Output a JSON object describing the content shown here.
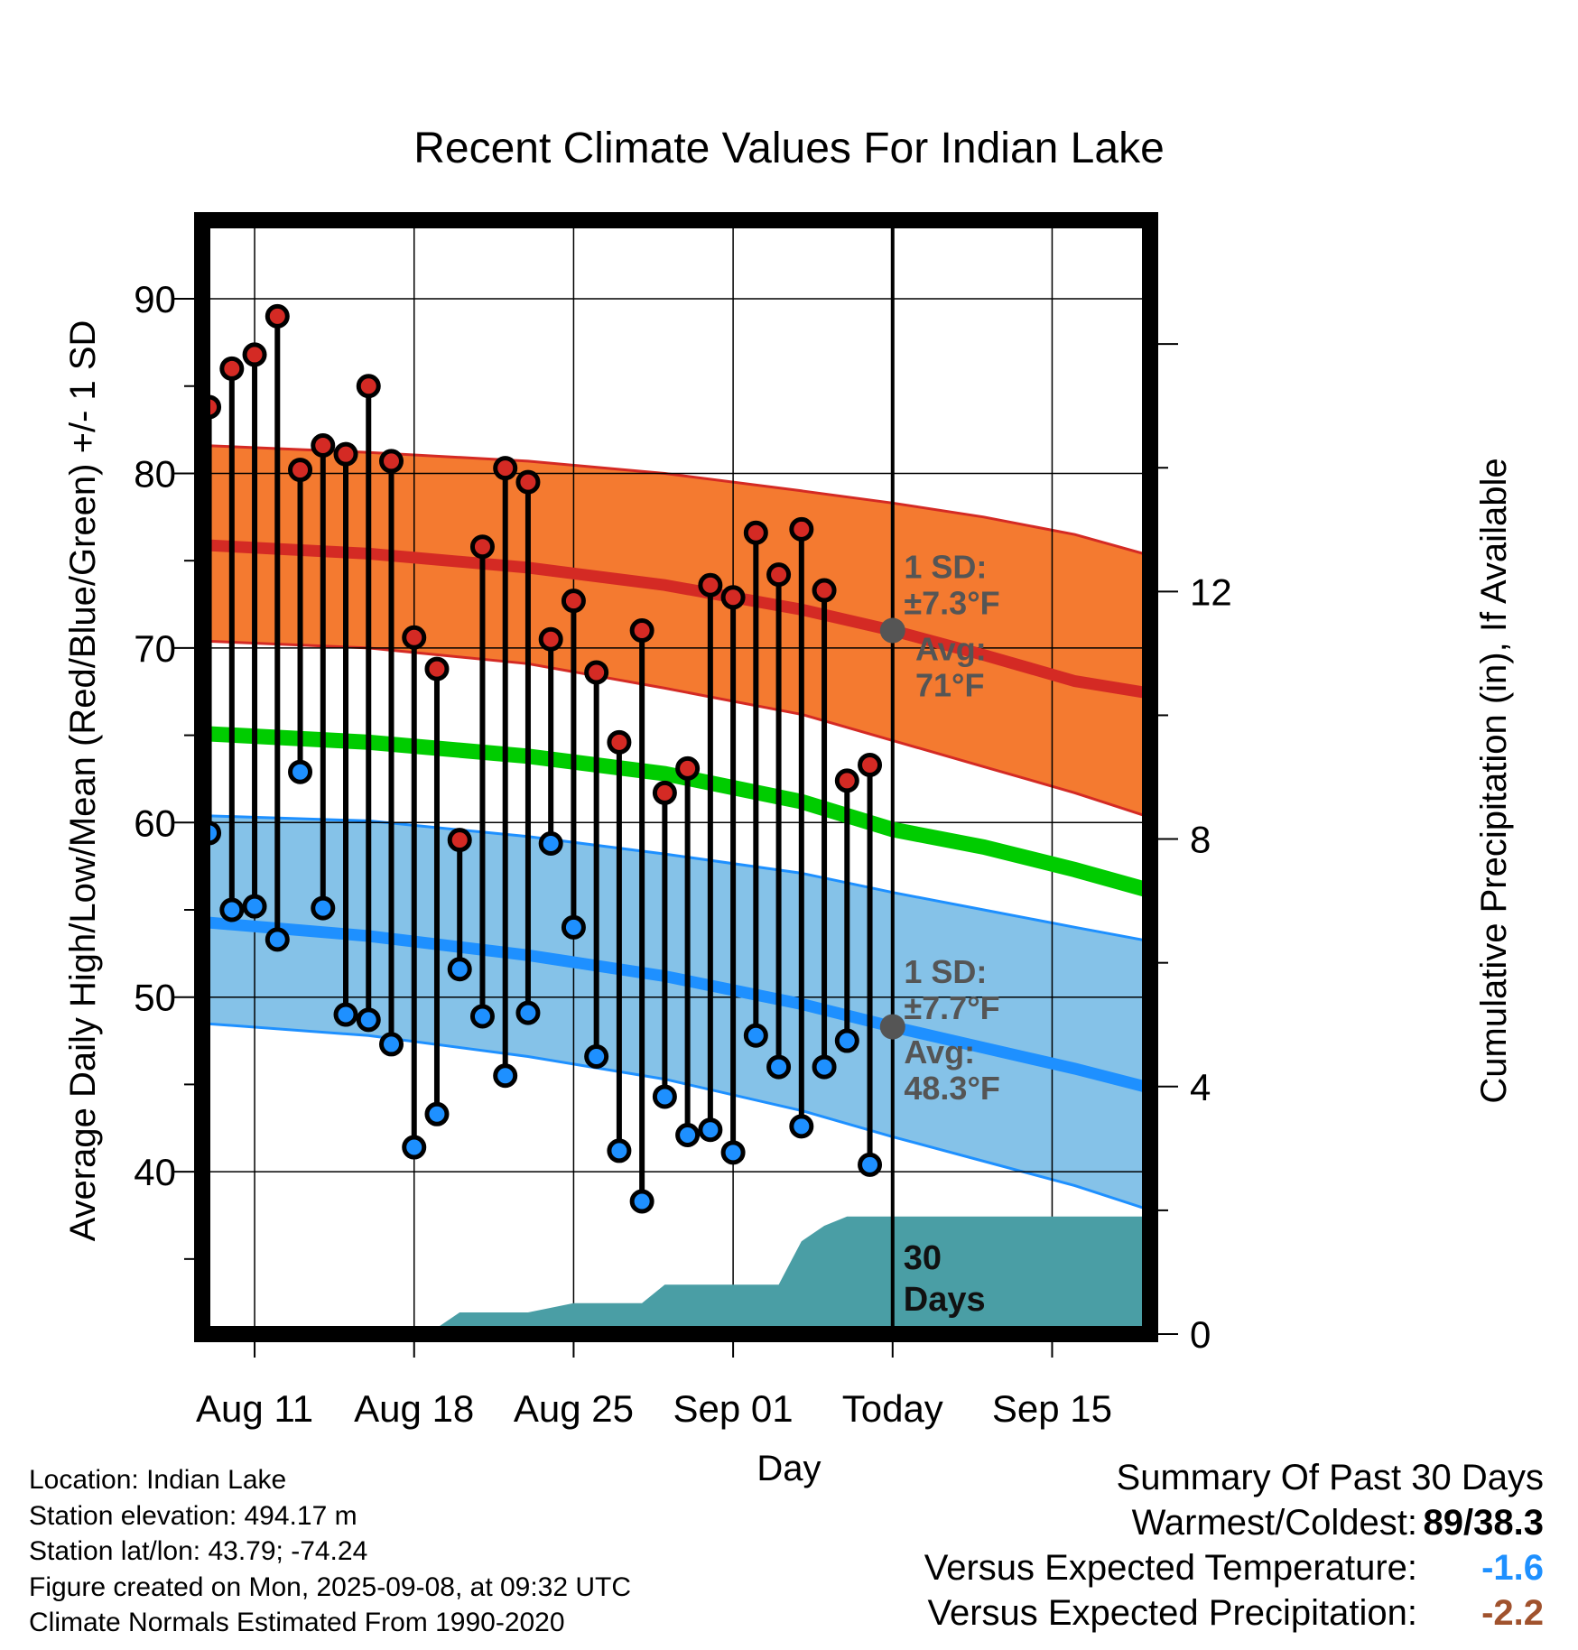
{
  "colors": {
    "high_band": "#f47a30",
    "high_mean": "#d42a24",
    "low_band": "#85c2e8",
    "low_mean": "#1e90ff",
    "overall_mean": "#00cc00",
    "precip": "#4a9ea5",
    "high_marker": "#d42a24",
    "low_marker": "#1e90ff",
    "annotation": "#555555",
    "temp_diff": "#1e90ff",
    "precip_diff": "#a0522d"
  },
  "chart_data": {
    "type": "line",
    "title": "Recent Climate Values For Indian Lake",
    "xlabel": "Day",
    "ylabel": "Average Daily High/Low/Mean (Red/Blue/Green) +/- 1 SD",
    "y2label": "Cumulative Precipitation (in), If Available",
    "xlim": [
      -2.3,
      39.3
    ],
    "ylim": [
      30.7,
      94.5
    ],
    "y2lim": [
      0,
      18
    ],
    "x_ticks": [
      {
        "x": 0,
        "label": "Aug 11"
      },
      {
        "x": 7,
        "label": "Aug 18"
      },
      {
        "x": 14,
        "label": "Aug 25"
      },
      {
        "x": 21,
        "label": "Sep 01"
      },
      {
        "x": 28,
        "label": "Today"
      },
      {
        "x": 35,
        "label": "Sep 15"
      }
    ],
    "y_ticks": [
      40,
      50,
      60,
      70,
      80,
      90
    ],
    "y2_ticks": [
      0,
      4,
      8,
      12
    ],
    "today_x": 28,
    "grid": true,
    "normals": {
      "x": [
        -2.3,
        5,
        12,
        18,
        24,
        28,
        32,
        36,
        39.3
      ],
      "high_mean": [
        75.9,
        75.4,
        74.6,
        73.6,
        72.2,
        71.0,
        69.6,
        68.1,
        67.4
      ],
      "high_upper": [
        81.6,
        81.2,
        80.7,
        80.0,
        79.0,
        78.3,
        77.5,
        76.5,
        75.3
      ],
      "high_lower": [
        70.4,
        70.0,
        69.1,
        67.7,
        66.2,
        64.7,
        63.2,
        61.7,
        60.3
      ],
      "low_mean": [
        54.3,
        53.5,
        52.4,
        51.2,
        49.6,
        48.3,
        47.1,
        45.9,
        44.8
      ],
      "low_upper": [
        60.4,
        60.1,
        59.2,
        58.2,
        57.1,
        56.0,
        55.0,
        54.0,
        53.2
      ],
      "low_lower": [
        48.5,
        47.8,
        46.6,
        45.3,
        43.5,
        42.0,
        40.6,
        39.2,
        37.8
      ],
      "overall_mean": [
        65.1,
        64.6,
        63.8,
        62.8,
        61.2,
        59.6,
        58.6,
        57.3,
        56.1
      ]
    },
    "series": [
      {
        "name": "High",
        "x": [
          -2,
          -1,
          0,
          1,
          2,
          3,
          4,
          5,
          6,
          7,
          8,
          9,
          10,
          11,
          12,
          13,
          14,
          15,
          16,
          17,
          18,
          19,
          20,
          21,
          22,
          23,
          24,
          25,
          26,
          27
        ],
        "values": [
          83.8,
          86.0,
          86.8,
          89.0,
          80.2,
          81.6,
          81.1,
          85.0,
          80.7,
          70.6,
          68.8,
          59.0,
          75.8,
          80.3,
          79.5,
          70.5,
          72.7,
          68.6,
          64.6,
          71.0,
          61.7,
          63.1,
          73.6,
          72.9,
          76.6,
          74.2,
          76.8,
          73.3,
          62.4,
          63.3
        ]
      },
      {
        "name": "Low",
        "x": [
          -2,
          -1,
          0,
          1,
          2,
          3,
          4,
          5,
          6,
          7,
          8,
          9,
          10,
          11,
          12,
          13,
          14,
          15,
          16,
          17,
          18,
          19,
          20,
          21,
          22,
          23,
          24,
          25,
          26,
          27
        ],
        "values": [
          59.4,
          55.0,
          55.2,
          53.3,
          62.9,
          55.1,
          49.0,
          48.7,
          47.3,
          41.4,
          43.3,
          51.6,
          48.9,
          45.5,
          49.1,
          58.8,
          54.0,
          46.6,
          41.2,
          38.3,
          44.3,
          42.1,
          42.4,
          41.1,
          47.8,
          46.0,
          42.6,
          46.0,
          47.5,
          40.4
        ]
      },
      {
        "name": "Cumulative Precipitation",
        "x": [
          1.9,
          8.0,
          9.0,
          10.0,
          12.0,
          14.0,
          16.0,
          17.0,
          18.0,
          19.0,
          20.0,
          21.0,
          22.0,
          23.0,
          24.0,
          25.0,
          26.0,
          39.3
        ],
        "values": [
          0.05,
          0.1,
          0.35,
          0.35,
          0.35,
          0.5,
          0.5,
          0.5,
          0.8,
          0.8,
          0.8,
          0.8,
          0.8,
          0.8,
          1.5,
          1.75,
          1.9,
          1.9
        ]
      }
    ],
    "annotations": [
      {
        "line1": "1 SD:",
        "line2": "±7.3°F",
        "x": 28.5,
        "y": 74.0
      },
      {
        "line1": "Avg:",
        "line2": "71°F",
        "x": 29.0,
        "y": 69.3
      },
      {
        "line1": "1 SD:",
        "line2": "±7.7°F",
        "x": 28.5,
        "y": 50.8
      },
      {
        "line1": "Avg:",
        "line2": "48.3°F",
        "x": 28.5,
        "y": 46.2
      }
    ],
    "avg_markers": [
      {
        "x": 28,
        "y": 71.0
      },
      {
        "x": 28,
        "y": 48.3
      }
    ],
    "days_label": {
      "line1": "30",
      "line2": "Days"
    }
  },
  "info": {
    "location": "Location: Indian Lake",
    "elevation": "Station elevation: 494.17 m",
    "latlon": "Station lat/lon: 43.79; -74.24",
    "created": "Figure created on Mon, 2025-09-08, at 09:32 UTC",
    "normals": "Climate Normals Estimated From 1990-2020"
  },
  "summary": {
    "title": "Summary Of Past 30 Days",
    "warm_cold_label": "Warmest/Coldest:",
    "warm_cold_value": "89/38.3",
    "temp_label": "Versus Expected Temperature:",
    "temp_value": "-1.6",
    "precip_label": "Versus Expected Precipitation:",
    "precip_value": "-2.2"
  }
}
